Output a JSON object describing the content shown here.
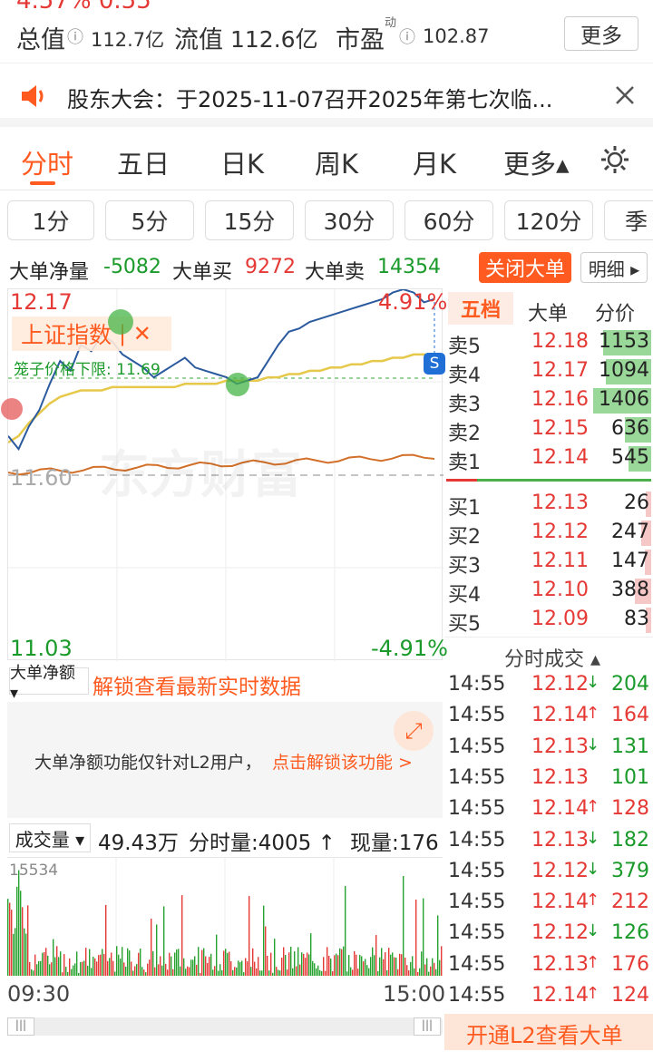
{
  "header": {
    "cut_text": "4.57%   0.55",
    "total_label": "总值",
    "total_value": "112.7亿",
    "float_label": "流值",
    "float_value": "112.6亿",
    "pe_label": "市盈",
    "pe_sup": "动",
    "pe_value": "102.87",
    "more_button": "更多"
  },
  "notice": {
    "text": "股东大会：于2025-11-07召开2025年第七次临..."
  },
  "tabs": [
    "分时",
    "五日",
    "日K",
    "周K",
    "月K",
    "更多▴"
  ],
  "periods": [
    "1分",
    "5分",
    "15分",
    "30分",
    "60分",
    "120分",
    "季"
  ],
  "big_order": {
    "net_label": "大单净量",
    "net_value": "-5082",
    "buy_label": "大单买",
    "buy_value": "9272",
    "sell_label": "大单卖",
    "sell_value": "14354",
    "close_button": "关闭大单",
    "detail_button": "明细 ▸"
  },
  "chart": {
    "price_high": "12.17",
    "pct_high": "4.91%",
    "price_mid": "11.60",
    "price_low": "11.03",
    "pct_low": "-4.91%",
    "index_overlay": "上证指数",
    "cage_label": "笼子价格下限: 11.69",
    "watermark": "东方财富",
    "s_badge": "S",
    "line_color": "#2b5a9e",
    "avg_color": "#e6c84a",
    "index_color": "#d2702a"
  },
  "chart_data": {
    "type": "line",
    "title": "",
    "xlabel": "",
    "ylabel": "",
    "ylim": [
      11.03,
      12.17
    ],
    "x_labels": [
      "09:30",
      "15:00"
    ],
    "series": [
      {
        "values": [
          11.72,
          11.68,
          11.75,
          11.8,
          11.88,
          11.95,
          11.92,
          12.0,
          11.98,
          12.03,
          12.01,
          11.97,
          11.95,
          11.93,
          11.9,
          11.92,
          11.94,
          11.96,
          11.93,
          11.92,
          11.91,
          11.9,
          11.88,
          11.89,
          11.9,
          11.95,
          12.0,
          12.04,
          12.05,
          12.07,
          12.08,
          12.09,
          12.1,
          12.11,
          12.12,
          12.13,
          12.14,
          12.16,
          12.17,
          12.16,
          12.13,
          12.14
        ]
      },
      {
        "values": [
          11.7,
          11.72,
          11.76,
          11.79,
          11.82,
          11.84,
          11.85,
          11.86,
          11.86,
          11.86,
          11.87,
          11.87,
          11.87,
          11.87,
          11.87,
          11.87,
          11.87,
          11.88,
          11.88,
          11.88,
          11.88,
          11.89,
          11.89,
          11.89,
          11.89,
          11.9,
          11.9,
          11.91,
          11.91,
          11.92,
          11.92,
          11.93,
          11.93,
          11.94,
          11.94,
          11.95,
          11.95,
          11.96,
          11.96,
          11.97,
          11.97,
          11.97
        ]
      }
    ]
  },
  "lock": {
    "dropdown": "大单净额 ▾",
    "title": "解锁查看最新实时数据",
    "desc": "大单净额功能仅针对L2用户，",
    "link": "点击解锁该功能 >"
  },
  "volume": {
    "dropdown": "成交量 ▾",
    "total": "49.43万",
    "minute": "分时量:4005 ↑",
    "current": "现量:176",
    "max_label": "15534",
    "time_start": "09:30",
    "time_end": "15:00"
  },
  "orderbook": {
    "tabs": [
      "五档",
      "大单",
      "分价"
    ],
    "sell": [
      {
        "label": "卖5",
        "price": "12.18",
        "vol": "1153"
      },
      {
        "label": "卖4",
        "price": "12.17",
        "vol": "1094"
      },
      {
        "label": "卖3",
        "price": "12.16",
        "vol": "1406"
      },
      {
        "label": "卖2",
        "price": "12.15",
        "vol": "636"
      },
      {
        "label": "卖1",
        "price": "12.14",
        "vol": "545"
      }
    ],
    "buy": [
      {
        "label": "买1",
        "price": "12.13",
        "vol": "26"
      },
      {
        "label": "买2",
        "price": "12.12",
        "vol": "247"
      },
      {
        "label": "买3",
        "price": "12.11",
        "vol": "147"
      },
      {
        "label": "买4",
        "price": "12.10",
        "vol": "388"
      },
      {
        "label": "买5",
        "price": "12.09",
        "vol": "83"
      }
    ],
    "sell_vol_pct": [
      0.75,
      0.72,
      0.92,
      0.42,
      0.36
    ],
    "buy_vol_pct": [
      0.02,
      0.16,
      0.1,
      0.26,
      0.05
    ]
  },
  "trades": {
    "title": "分时成交 ▴",
    "rows": [
      {
        "time": "14:55",
        "price": "12.12",
        "dir": "↓",
        "vol": "204"
      },
      {
        "time": "14:55",
        "price": "12.14",
        "dir": "↑",
        "vol": "164"
      },
      {
        "time": "14:55",
        "price": "12.13",
        "dir": "↓",
        "vol": "131"
      },
      {
        "time": "14:55",
        "price": "12.13",
        "dir": "",
        "vol": "101"
      },
      {
        "time": "14:55",
        "price": "12.14",
        "dir": "↑",
        "vol": "128"
      },
      {
        "time": "14:55",
        "price": "12.13",
        "dir": "↓",
        "vol": "182"
      },
      {
        "time": "14:55",
        "price": "12.12",
        "dir": "↓",
        "vol": "379"
      },
      {
        "time": "14:55",
        "price": "12.14",
        "dir": "↑",
        "vol": "212"
      },
      {
        "time": "14:55",
        "price": "12.12",
        "dir": "↓",
        "vol": "126"
      },
      {
        "time": "14:55",
        "price": "12.13",
        "dir": "↑",
        "vol": "176"
      },
      {
        "time": "14:55",
        "price": "12.14",
        "dir": "↑",
        "vol": "124"
      }
    ]
  },
  "l2_banner": "开通L2查看大单"
}
